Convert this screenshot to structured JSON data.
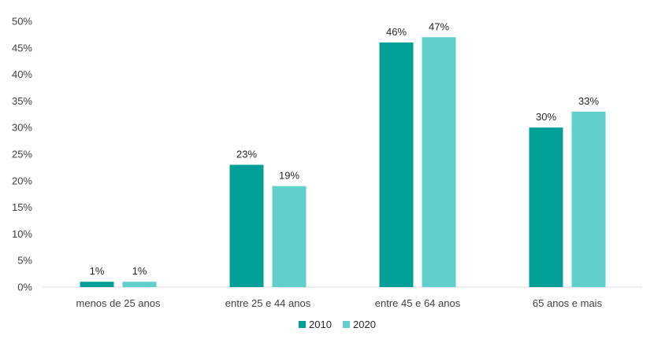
{
  "chart_data": {
    "type": "bar",
    "title": "",
    "xlabel": "",
    "ylabel": "",
    "categories": [
      "menos de 25 anos",
      "entre 25 e 44 anos",
      "entre 45 e 64 anos",
      "65 anos e mais"
    ],
    "series": [
      {
        "name": "2010",
        "values": [
          1,
          23,
          46,
          30
        ],
        "color": "#009f97"
      },
      {
        "name": "2020",
        "values": [
          1,
          19,
          47,
          33
        ],
        "color": "#62cfcf"
      }
    ],
    "ylim": [
      0,
      50
    ],
    "yticks": [
      0,
      5,
      10,
      15,
      20,
      25,
      30,
      35,
      40,
      45,
      50
    ],
    "value_suffix": "%",
    "grid": false,
    "legend_position": "bottom"
  }
}
